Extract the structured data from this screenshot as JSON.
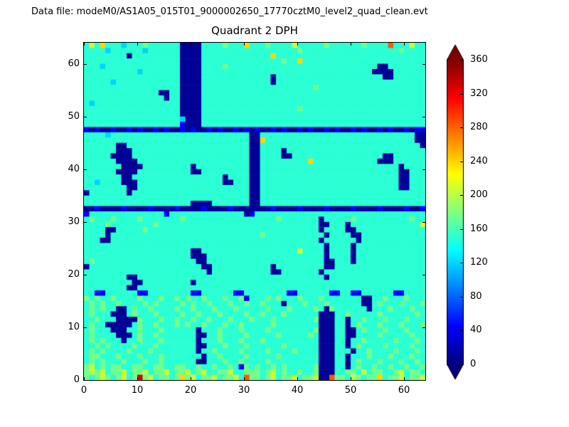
{
  "figure": {
    "data_file_label": "Data file: modeM0/AS1A05_015T01_9000002650_17770cztM0_level2_quad_clean.evt",
    "plot_title": "Quadrant 2 DPH"
  },
  "chart_data": {
    "type": "heatmap",
    "title": "Quadrant 2 DPH",
    "colormap": "jet",
    "x_label": "",
    "y_label": "",
    "x_range": [
      0,
      64
    ],
    "y_range": [
      0,
      64
    ],
    "x_ticks": [
      0,
      10,
      20,
      30,
      40,
      50,
      60
    ],
    "y_ticks": [
      0,
      10,
      20,
      30,
      40,
      50,
      60
    ],
    "grid_on": false,
    "colorbar": {
      "min": 0,
      "max": 360,
      "ticks": [
        0,
        40,
        80,
        120,
        160,
        200,
        240,
        280,
        320,
        360
      ],
      "extend": "both",
      "under_color": "#000080",
      "over_color": "#800000"
    },
    "value_levels": {
      "0": 8,
      "1": 45,
      "2": 85,
      "3": 120,
      "4": 150,
      "5": 175,
      "6": 205,
      "7": 240,
      "8": 285,
      "9": 330
    },
    "grid_rows_top_to_bottom": [
      [
        "4647444344454444",
        "4400004444544474",
        "4454444644444544",
        "4444544448444644"
      ],
      [
        "4444344444434444",
        "4400004444444444",
        "4444444454444444",
        "4444444444454444"
      ],
      [
        "4444444404444444",
        "4400004444444444",
        "4447444444444444",
        "4444444444444444"
      ],
      [
        "4444444444444444",
        "4400004444444444",
        "4444454474444444",
        "4444444444444444"
      ],
      [
        "4443444444444444",
        "4400004444544444",
        "4444444444444444",
        "4444444004444444"
      ],
      [
        "4444444444344444",
        "4400004444444444",
        "4444444444444444",
        "4444440000444444"
      ],
      [
        "4444444444444444",
        "4400004444444444",
        "4440444444444444",
        "4444444400444444"
      ],
      [
        "4444434444444444",
        "4400004444444444",
        "4440444444444444",
        "4444444444444444"
      ],
      [
        "4444444444444444",
        "4400004444444444",
        "4444444444454444",
        "4444444444444444"
      ],
      [
        "4444444444444400",
        "4400004444444444",
        "4444444444444444",
        "4444444444444444"
      ],
      [
        "4444444444444440",
        "4400004444444444",
        "4444444444444444",
        "4444444444444444"
      ],
      [
        "4344444444444444",
        "4400004444444444",
        "4444444444444444",
        "4444444444444444"
      ],
      [
        "4444444444444444",
        "4400004444444444",
        "4444444454444444",
        "4444444444444444"
      ],
      [
        "4444444444444444",
        "4400004444444444",
        "4444444444444444",
        "4444444444444444"
      ],
      [
        "4444444444444444",
        "4430004444444444",
        "4444444444444444",
        "4444444444444444"
      ],
      [
        "4444444444444444",
        "4410004444444444",
        "4444444444444444",
        "4444444444444444"
      ],
      [
        "1010010010100101",
        "0010100101001010",
        "1001010010100101",
        "0010100101001011"
      ],
      [
        "4444344444444444",
        "4444444444444440",
        "0444444444444444",
        "4444444444444400"
      ],
      [
        "4444444444444444",
        "4444444444444440",
        "0744444444444444",
        "4444444444444400"
      ],
      [
        "4444440044444444",
        "4444444444444440",
        "0444444444444444",
        "4444444444444440"
      ],
      [
        "4444440004444444",
        "4444444444444440",
        "0444404444444444",
        "4444444444444444"
      ],
      [
        "4444400004444444",
        "4444444444444440",
        "0444400444444444",
        "4444444400444444"
      ],
      [
        "4444440000444444",
        "4444444444444440",
        "0444444444744444",
        "4444444000444444"
      ],
      [
        "4444444000044444",
        "4444044444444440",
        "0444444444444444",
        "4444444444404444"
      ],
      [
        "4444440000444444",
        "4444004444444440",
        "0444444444444444",
        "4444444444400444"
      ],
      [
        "4444444004444444",
        "4444444444044440",
        "0444444444444444",
        "4444444444400444"
      ],
      [
        "4434444000444444",
        "4444444444004440",
        "0444444444444444",
        "4444444444400444"
      ],
      [
        "4444444400444444",
        "4444444444444440",
        "0444444444444444",
        "4444444444400444"
      ],
      [
        "0444444404444444",
        "4444444444444440",
        "0444444444444444",
        "4444444444444444"
      ],
      [
        "4444444444444444",
        "4444444444444440",
        "0444444444444444",
        "4444444444444444"
      ],
      [
        "4444444444444444",
        "4444000044444440",
        "0444444444444444",
        "4444444444444444"
      ],
      [
        "0010000100001000",
        "0100001000010000",
        "0001000010000100",
        "0010000100001001"
      ],
      [
        "1444444444444441",
        "4444444444444401",
        "4444444444444444",
        "4444444444444444"
      ],
      [
        "4544454444544444",
        "4454444444444444",
        "4444544444440444",
        "4454444444444544"
      ],
      [
        "4444544444444544",
        "4444444444444444",
        "4444444444440044",
        "4044444444444446"
      ],
      [
        "4444004444454444",
        "4444444444444444",
        "4444444444440444",
        "4004444444444444"
      ],
      [
        "4444044444444444",
        "4444444444444444",
        "4544444444444044",
        "4400444444444444"
      ],
      [
        "4440044444444444",
        "4444444444444444",
        "4444444444440444",
        "4440444444444444"
      ],
      [
        "4444444444444444",
        "4444444444444444",
        "4444444444444044",
        "4404444444444444"
      ],
      [
        "4444444444444444",
        "4444004444444444",
        "4444444464444044",
        "4404444444444444"
      ],
      [
        "4444444444444444",
        "4444000444444444",
        "4444444444444044",
        "4404444444444444"
      ],
      [
        "4544444444444444",
        "4444400444444444",
        "4444444444444004",
        "4404444444444444"
      ],
      [
        "0444444444444444",
        "4444440044444444",
        "4440444444444004",
        "4444444444444444"
      ],
      [
        "4444444444444444",
        "4444444044444444",
        "4440044444440444",
        "4444444444444444"
      ],
      [
        "4444444400444444",
        "4444444444444444",
        "4444444444444044",
        "4444444444444444"
      ],
      [
        "4444444440044444",
        "4444044444444444",
        "4444444444444444",
        "4444444444444444"
      ],
      [
        "4444444400444444",
        "4444444444444444",
        "4444444444444444",
        "4444444444444444"
      ],
      [
        "4411444444114444",
        "4444114444441144",
        "4444441144444411",
        "4411444444114444"
      ],
      [
        "5454454444544454",
        "4545445444544514",
        "4454544454445444",
        "4444004454445444"
      ],
      [
        "4545445444454544",
        "4454544544454454",
        "4544404445444544",
        "4444004544454445"
      ],
      [
        "4545440045445444",
        "4544544454445444",
        "4454445444454054",
        "4444404445444544"
      ],
      [
        "4544400045444544",
        "4454454445444454",
        "4544454444440004",
        "4544444544444454"
      ],
      [
        "4454440000544454",
        "4544544544454445",
        "4445444444450004",
        "4044544454445444"
      ],
      [
        "4544000004544544",
        "4545445444544544",
        "4445444444440004",
        "4045444544454445"
      ],
      [
        "4544400044544454",
        "4444404445444544",
        "4454444444450004",
        "4004544454445444"
      ],
      [
        "4544440004544544",
        "4444400445444454",
        "4444544444540004",
        "4004444544444544"
      ],
      [
        "4545444044544454",
        "4444404445444544",
        "4544444444440004",
        "4044544444544454"
      ],
      [
        "4454544445444544",
        "4444400444544454",
        "4444454444440004",
        "4045444454444544"
      ],
      [
        "4545444454445444",
        "4444404454444544",
        "4454444544440004",
        "4404454444544454"
      ],
      [
        "4554445444544454",
        "4444440445444454",
        "4444544444440004",
        "4044454445444544"
      ],
      [
        "4545444544454454",
        "4444400444544544",
        "4454444444440004",
        "4045444544454454"
      ],
      [
        "5645455445544554",
        "4554454454454154",
        "5445454444450004",
        "4045445445445445"
      ],
      [
        "5656455645564556",
        "4556456445564455",
        "5456454454450004",
        "4554645544564554"
      ],
      [
        "5456545645956455",
        "4575645564556485",
        "5456455645560085",
        "5465455745564556"
      ]
    ]
  }
}
